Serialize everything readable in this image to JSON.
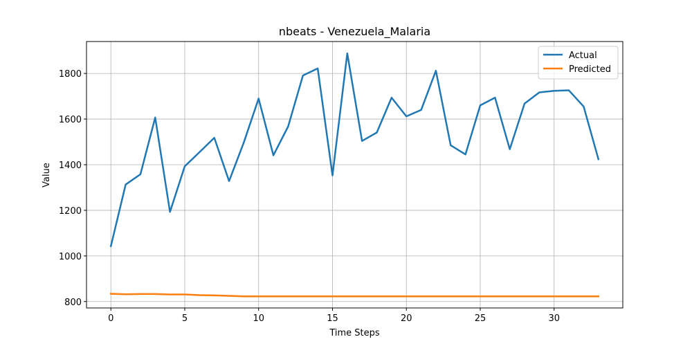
{
  "chart_data": {
    "type": "line",
    "title": "nbeats - Venezuela_Malaria",
    "xlabel": "Time Steps",
    "ylabel": "Value",
    "xlim": [
      -1.65,
      34.65
    ],
    "ylim": [
      772,
      1940
    ],
    "xticks": [
      0,
      5,
      10,
      15,
      20,
      25,
      30
    ],
    "yticks": [
      800,
      1000,
      1200,
      1400,
      1600,
      1800
    ],
    "grid": true,
    "legend_position": "top-right",
    "x": [
      0,
      1,
      2,
      3,
      4,
      5,
      6,
      7,
      8,
      9,
      10,
      11,
      12,
      13,
      14,
      15,
      16,
      17,
      18,
      19,
      20,
      21,
      22,
      23,
      24,
      25,
      26,
      27,
      28,
      29,
      30,
      31,
      32,
      33
    ],
    "series": [
      {
        "name": "Actual",
        "color": "#1f77b4",
        "values": [
          1043,
          1313,
          1358,
          1607,
          1193,
          1393,
          1455,
          1518,
          1328,
          1498,
          1690,
          1441,
          1568,
          1791,
          1822,
          1353,
          1888,
          1504,
          1541,
          1694,
          1612,
          1640,
          1812,
          1485,
          1445,
          1660,
          1694,
          1468,
          1668,
          1717,
          1724,
          1726,
          1655,
          1424
        ]
      },
      {
        "name": "Predicted",
        "color": "#ff7f0e",
        "values": [
          834,
          832,
          833,
          833,
          831,
          831,
          828,
          827,
          825,
          823,
          823,
          823,
          823,
          823,
          823,
          823,
          823,
          823,
          823,
          823,
          823,
          823,
          823,
          823,
          823,
          823,
          823,
          823,
          823,
          823,
          823,
          823,
          823,
          823
        ]
      }
    ]
  }
}
